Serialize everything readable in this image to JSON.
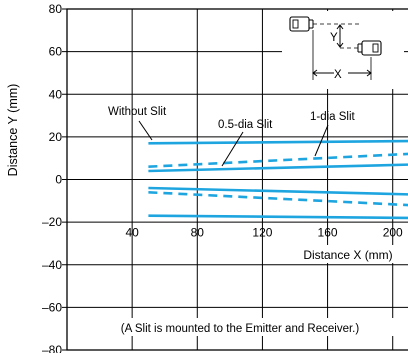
{
  "chart_data": {
    "type": "line",
    "xlabel": "Distance X (mm)",
    "ylabel": "Distance Y (mm)",
    "xlim": [
      0,
      210
    ],
    "ylim": [
      -80,
      80
    ],
    "x_ticks": [
      40,
      80,
      120,
      160,
      200
    ],
    "y_ticks": [
      80,
      60,
      40,
      20,
      0,
      -20,
      -40,
      -60,
      -80
    ],
    "x_tick_labels": [
      "40",
      "80",
      "120",
      "160",
      "200"
    ],
    "y_tick_labels": [
      "80",
      "60",
      "40",
      "20",
      "0",
      "–20",
      "–40",
      "–60",
      "–80"
    ],
    "grid": true,
    "series": [
      {
        "name": "Without Slit",
        "style": "solid",
        "x": [
          50,
          210
        ],
        "y": [
          17,
          18
        ]
      },
      {
        "name": "Without Slit",
        "style": "solid",
        "x": [
          50,
          210
        ],
        "y": [
          -17,
          -18
        ]
      },
      {
        "name": "0.5-dia Slit",
        "style": "solid",
        "x": [
          50,
          210
        ],
        "y": [
          4,
          7
        ]
      },
      {
        "name": "0.5-dia Slit",
        "style": "solid",
        "x": [
          50,
          210
        ],
        "y": [
          -4,
          -7
        ]
      },
      {
        "name": "1-dia Slit",
        "style": "dashed",
        "x": [
          50,
          210
        ],
        "y": [
          6,
          12
        ]
      },
      {
        "name": "1-dia Slit",
        "style": "dashed",
        "x": [
          50,
          210
        ],
        "y": [
          -6,
          -12
        ]
      }
    ],
    "annotations": [
      {
        "text": "Without Slit",
        "target_x": 50,
        "target_y": 17
      },
      {
        "text": "0.5-dia Slit",
        "target_x": 95,
        "target_y": 5
      },
      {
        "text": "1-dia Slit",
        "target_x": 160,
        "target_y": 10
      }
    ],
    "note": "(A Slit is mounted to the Emitter and Receiver.)",
    "inset": {
      "x_label": "X",
      "y_label": "Y"
    },
    "colors": {
      "series": "#1ea5e0",
      "grid": "#000000",
      "background": "#ffffff"
    }
  }
}
